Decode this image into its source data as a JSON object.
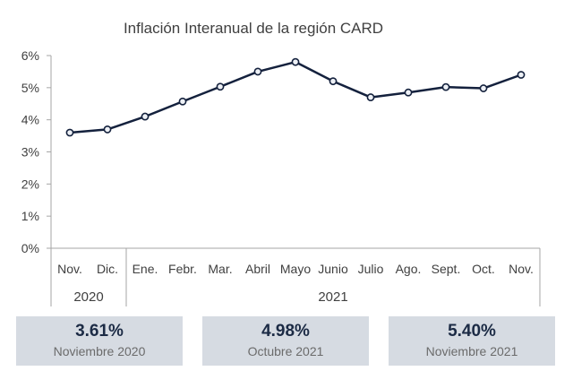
{
  "chart_data": {
    "type": "line",
    "title": "Inflación Interanual de la región CARD",
    "categories": [
      "Nov.",
      "Dic.",
      "Ene.",
      "Febr.",
      "Mar.",
      "Abril",
      "Mayo",
      "Junio",
      "Julio",
      "Ago.",
      "Sept.",
      "Oct.",
      "Nov."
    ],
    "year_groups": [
      {
        "label": "2020",
        "count": 2
      },
      {
        "label": "2021",
        "count": 11
      }
    ],
    "series": [
      {
        "values": [
          3.6,
          3.7,
          4.1,
          4.57,
          5.03,
          5.5,
          5.8,
          5.2,
          4.7,
          4.85,
          5.02,
          4.98,
          5.4
        ]
      }
    ],
    "ylim": [
      0,
      6
    ],
    "yticks": [
      "0%",
      "1%",
      "2%",
      "3%",
      "4%",
      "5%",
      "6%"
    ],
    "grid": false,
    "colors": {
      "line": "#14213d",
      "marker_fill": "#eef1f6",
      "axis": "#a6a6a6"
    }
  },
  "stats": [
    {
      "value": "3.61%",
      "label": "Noviembre 2020"
    },
    {
      "value": "4.98%",
      "label": "Octubre 2021"
    },
    {
      "value": "5.40%",
      "label": "Noviembre 2021"
    }
  ],
  "colors": {
    "stat_bg": "#d6dbe2",
    "stat_value": "#1c2b45"
  }
}
